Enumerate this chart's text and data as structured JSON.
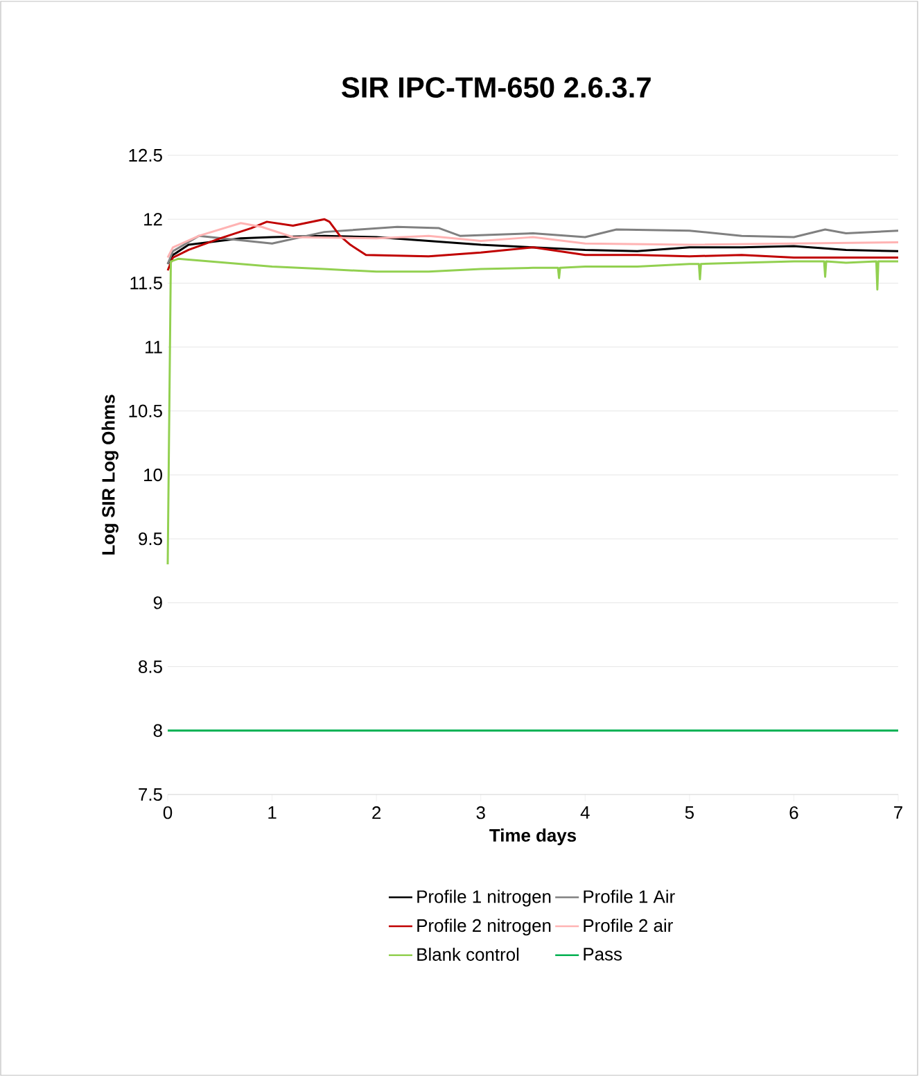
{
  "chart_data": {
    "type": "line",
    "title": "SIR  IPC-TM-650 2.6.3.7",
    "xlabel": "Time days",
    "ylabel": "Log SIR Log Ohms",
    "xlim": [
      0,
      7
    ],
    "ylim": [
      7.5,
      12.5
    ],
    "xticks": [
      0,
      1,
      2,
      3,
      4,
      5,
      6,
      7
    ],
    "yticks": [
      7.5,
      8,
      8.5,
      9,
      9.5,
      10,
      10.5,
      11,
      11.5,
      12,
      12.5
    ],
    "grid": "y",
    "legend": "bottom",
    "line_style": "solid",
    "marker": "none",
    "series": [
      {
        "name": "Profile 1 nitrogen",
        "color": "#000000",
        "x": [
          0,
          0.05,
          0.2,
          0.7,
          1,
          1.5,
          2,
          2.5,
          3,
          3.5,
          4,
          4.5,
          5,
          5.5,
          6,
          6.5,
          7
        ],
        "values": [
          11.65,
          11.72,
          11.8,
          11.85,
          11.86,
          11.87,
          11.86,
          11.83,
          11.8,
          11.78,
          11.76,
          11.75,
          11.78,
          11.78,
          11.79,
          11.76,
          11.75
        ]
      },
      {
        "name": "Profile 1 Air",
        "color": "#808080",
        "x": [
          0,
          0.05,
          0.3,
          1,
          1.5,
          2.2,
          2.6,
          2.8,
          3.5,
          4,
          4.3,
          5,
          5.5,
          6,
          6.3,
          6.5,
          7
        ],
        "values": [
          11.65,
          11.75,
          11.87,
          11.81,
          11.9,
          11.94,
          11.93,
          11.87,
          11.89,
          11.86,
          11.92,
          11.91,
          11.87,
          11.86,
          11.92,
          11.89,
          11.91
        ]
      },
      {
        "name": "Profile 2 nitrogen",
        "color": "#c00000",
        "x": [
          0,
          0.05,
          0.2,
          0.5,
          0.8,
          0.95,
          1.2,
          1.5,
          1.55,
          1.65,
          1.75,
          1.9,
          2.5,
          3,
          3.5,
          4,
          4.5,
          5,
          5.5,
          6,
          7
        ],
        "values": [
          11.6,
          11.7,
          11.76,
          11.85,
          11.93,
          11.98,
          11.95,
          12.0,
          11.98,
          11.87,
          11.8,
          11.72,
          11.71,
          11.74,
          11.78,
          11.72,
          11.72,
          11.71,
          11.72,
          11.7,
          11.7
        ]
      },
      {
        "name": "Profile 2 air",
        "color": "#ffb3b3",
        "x": [
          0,
          0.05,
          0.3,
          0.7,
          0.9,
          1.2,
          2,
          2.5,
          3,
          3.5,
          4,
          5,
          6,
          7
        ],
        "values": [
          11.7,
          11.78,
          11.87,
          11.97,
          11.94,
          11.86,
          11.85,
          11.87,
          11.83,
          11.86,
          11.81,
          11.8,
          11.81,
          11.82
        ]
      },
      {
        "name": "Blank control",
        "color": "#92d050",
        "x": [
          0,
          0.03,
          0.1,
          0.7,
          1,
          1.5,
          2,
          2.5,
          3,
          3.5,
          3.74,
          3.75,
          3.76,
          4,
          4.5,
          5,
          5.09,
          5.1,
          5.11,
          5.5,
          6,
          6.29,
          6.3,
          6.31,
          6.5,
          6.79,
          6.8,
          6.81,
          7
        ],
        "values": [
          9.3,
          11.67,
          11.69,
          11.65,
          11.63,
          11.61,
          11.59,
          11.59,
          11.61,
          11.62,
          11.62,
          11.54,
          11.62,
          11.63,
          11.63,
          11.65,
          11.65,
          11.53,
          11.65,
          11.66,
          11.67,
          11.67,
          11.55,
          11.67,
          11.66,
          11.67,
          11.45,
          11.67,
          11.67
        ]
      },
      {
        "name": "Pass",
        "color": "#00b050",
        "x": [
          0,
          7
        ],
        "values": [
          8,
          8
        ]
      }
    ]
  }
}
